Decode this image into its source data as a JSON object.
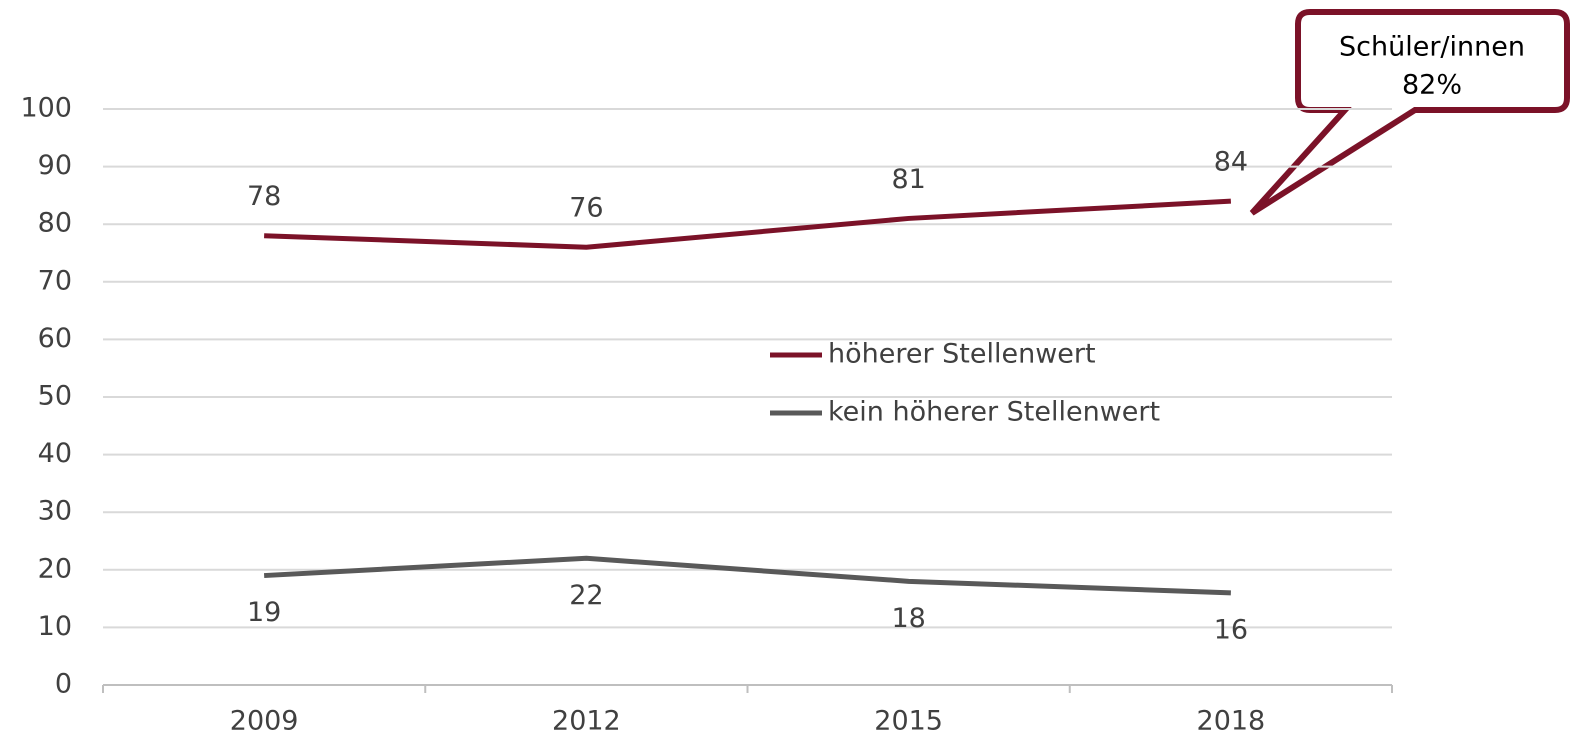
{
  "chart_data": {
    "type": "line",
    "categories": [
      "2009",
      "2012",
      "2015",
      "2018"
    ],
    "series": [
      {
        "name": "höherer Stellenwert",
        "color": "#7b1228",
        "values": [
          78,
          76,
          81,
          84
        ]
      },
      {
        "name": "kein höherer Stellenwert",
        "color": "#595959",
        "values": [
          19,
          22,
          18,
          16
        ]
      }
    ],
    "ylim": [
      0,
      100
    ],
    "yticks": [
      0,
      10,
      20,
      30,
      40,
      50,
      60,
      70,
      80,
      90,
      100
    ],
    "grid": true,
    "annotation": [
      "Schüler/innen",
      "82%"
    ]
  }
}
